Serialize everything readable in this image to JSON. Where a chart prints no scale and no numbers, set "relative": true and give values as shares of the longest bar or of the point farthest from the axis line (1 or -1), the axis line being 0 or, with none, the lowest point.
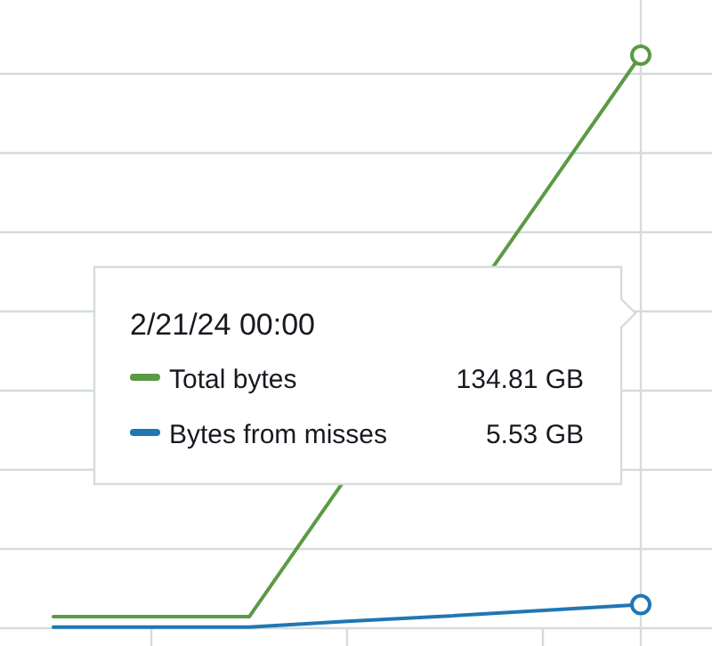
{
  "chart_data": {
    "type": "line",
    "relative": true,
    "categories": [
      null,
      null,
      null,
      null,
      null,
      null,
      null
    ],
    "series": [
      {
        "name": "Total bytes",
        "color": "#5b9a45",
        "values": [
          0.02,
          0.02,
          0.02,
          null,
          null,
          0.755,
          1
        ]
      },
      {
        "name": "Bytes from misses",
        "color": "#1f77b4",
        "values": [
          0.002,
          0.002,
          0.002,
          0.012,
          0.021,
          0.031,
          0.041
        ]
      }
    ],
    "annotations": [
      "2/21/24 00:00",
      "134.81 GB",
      "5.53 GB"
    ],
    "grid": "y",
    "legend": "center",
    "line_style": "solid"
  }
}
